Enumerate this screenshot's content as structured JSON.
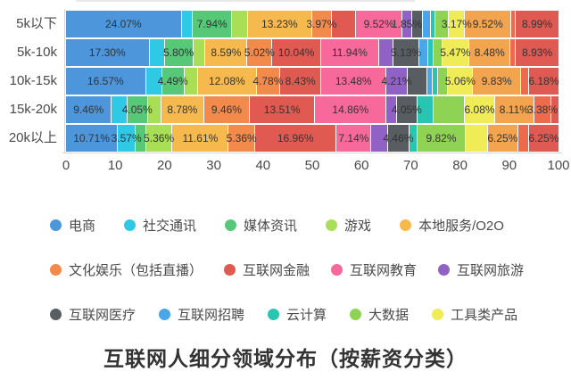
{
  "title": "互联网人细分领域分布（按薪资分类）",
  "palette": {
    "ecommerce": "#4D96DB",
    "social": "#2FC8E5",
    "media": "#57C878",
    "game": "#A9DF56",
    "local_service": "#F6B94D",
    "culture": "#F28A4C",
    "finance": "#E15A52",
    "education": "#F6699A",
    "travel": "#9062C6",
    "medical": "#575D61",
    "recruit": "#4BA5E9",
    "cloud": "#28C5B0",
    "bigdata": "#8ED353",
    "tools": "#F0EC58",
    "extra_orange": "#F3A44E",
    "extra_orangered": "#EE6A4D",
    "extra_red": "#DF5A52"
  },
  "legend": {
    "rows": [
      [
        {
          "label": "电商",
          "color": "ecommerce"
        },
        {
          "label": "社交通讯",
          "color": "social"
        },
        {
          "label": "媒体资讯",
          "color": "media"
        },
        {
          "label": "游戏",
          "color": "game"
        },
        {
          "label": "本地服务/O2O",
          "color": "local_service"
        }
      ],
      [
        {
          "label": "文化娱乐（包括直播）",
          "color": "culture"
        },
        {
          "label": "互联网金融",
          "color": "finance"
        },
        {
          "label": "互联网教育",
          "color": "education"
        },
        {
          "label": "互联网旅游",
          "color": "travel"
        }
      ],
      [
        {
          "label": "互联网医疗",
          "color": "medical"
        },
        {
          "label": "互联网招聘",
          "color": "recruit"
        },
        {
          "label": "云计算",
          "color": "cloud"
        },
        {
          "label": "大数据",
          "color": "bigdata"
        },
        {
          "label": "工具类产品",
          "color": "tools"
        }
      ]
    ]
  },
  "chart_data": {
    "type": "bar",
    "subtype": "horizontal-stacked-percentage",
    "title": "互联网人细分领域分布（按薪资分类）",
    "xlabel": "",
    "ylabel": "",
    "xlim": [
      0,
      100
    ],
    "x_ticks": [
      "0",
      "10",
      "20",
      "30",
      "40",
      "50",
      "60",
      "70",
      "80",
      "90",
      "100"
    ],
    "grid": false,
    "legend_position": "bottom",
    "categories": [
      "5k以下",
      "5k-10k",
      "10k-15k",
      "15k-20k",
      "20k以上"
    ],
    "bars": [
      {
        "category": "5k以下",
        "segments": [
          {
            "c": "ecommerce",
            "v": 24.07,
            "label": "24.07%"
          },
          {
            "c": "social",
            "v": 2.2,
            "label": ""
          },
          {
            "c": "media",
            "v": 7.94,
            "label": "7.94%"
          },
          {
            "c": "game",
            "v": 3.2,
            "label": ""
          },
          {
            "c": "local_service",
            "v": 13.23,
            "label": "13.23%"
          },
          {
            "c": "culture",
            "v": 3.97,
            "label": "3.97%"
          },
          {
            "c": "finance",
            "v": 4.9,
            "label": ""
          },
          {
            "c": "education",
            "v": 9.52,
            "label": "9.52%"
          },
          {
            "c": "travel",
            "v": 1.85,
            "label": "1.85%"
          },
          {
            "c": "medical",
            "v": 2.0,
            "label": ""
          },
          {
            "c": "recruit",
            "v": 1.5,
            "label": ""
          },
          {
            "c": "cloud",
            "v": 0.8,
            "label": ""
          },
          {
            "c": "bigdata",
            "v": 2.7,
            "label": ""
          },
          {
            "c": "tools",
            "v": 3.17,
            "label": "3.17%"
          },
          {
            "c": "extra_orange",
            "v": 9.52,
            "label": "9.52%"
          },
          {
            "c": "extra_orangered",
            "v": 0.7,
            "label": ""
          },
          {
            "c": "extra_red",
            "v": 8.99,
            "label": "8.99%"
          }
        ]
      },
      {
        "category": "5k-10k",
        "segments": [
          {
            "c": "ecommerce",
            "v": 17.3,
            "label": "17.30%"
          },
          {
            "c": "social",
            "v": 3.0,
            "label": ""
          },
          {
            "c": "media",
            "v": 5.8,
            "label": "5.80%"
          },
          {
            "c": "game",
            "v": 2.4,
            "label": ""
          },
          {
            "c": "local_service",
            "v": 8.59,
            "label": "8.59%"
          },
          {
            "c": "culture",
            "v": 5.02,
            "label": "5.02%"
          },
          {
            "c": "finance",
            "v": 10.04,
            "label": "10.04%"
          },
          {
            "c": "education",
            "v": 11.94,
            "label": "11.94%"
          },
          {
            "c": "travel",
            "v": 2.9,
            "label": ""
          },
          {
            "c": "medical",
            "v": 5.13,
            "label": "5.13%"
          },
          {
            "c": "recruit",
            "v": 1.8,
            "label": ""
          },
          {
            "c": "cloud",
            "v": 0.9,
            "label": ""
          },
          {
            "c": "bigdata",
            "v": 1.6,
            "label": ""
          },
          {
            "c": "tools",
            "v": 5.47,
            "label": "5.47%"
          },
          {
            "c": "extra_orange",
            "v": 8.48,
            "label": "8.48%"
          },
          {
            "c": "extra_orangered",
            "v": 0.9,
            "label": ""
          },
          {
            "c": "extra_red",
            "v": 8.93,
            "label": "8.93%"
          }
        ]
      },
      {
        "category": "10k-15k",
        "segments": [
          {
            "c": "ecommerce",
            "v": 16.57,
            "label": "16.57%"
          },
          {
            "c": "social",
            "v": 3.2,
            "label": ""
          },
          {
            "c": "media",
            "v": 4.49,
            "label": "4.49%"
          },
          {
            "c": "game",
            "v": 2.7,
            "label": ""
          },
          {
            "c": "local_service",
            "v": 12.08,
            "label": "12.08%"
          },
          {
            "c": "culture",
            "v": 4.78,
            "label": "4.78%"
          },
          {
            "c": "finance",
            "v": 8.43,
            "label": "8.43%"
          },
          {
            "c": "education",
            "v": 13.48,
            "label": "13.48%"
          },
          {
            "c": "travel",
            "v": 4.21,
            "label": "4.21%"
          },
          {
            "c": "medical",
            "v": 4.0,
            "label": ""
          },
          {
            "c": "recruit",
            "v": 0.9,
            "label": ""
          },
          {
            "c": "cloud",
            "v": 0.9,
            "label": ""
          },
          {
            "c": "bigdata",
            "v": 2.0,
            "label": ""
          },
          {
            "c": "tools",
            "v": 5.06,
            "label": "5.06%"
          },
          {
            "c": "extra_orange",
            "v": 9.83,
            "label": "9.83%"
          },
          {
            "c": "extra_orangered",
            "v": 1.5,
            "label": ""
          },
          {
            "c": "extra_red",
            "v": 6.18,
            "label": "6.18%"
          }
        ]
      },
      {
        "category": "15k-20k",
        "segments": [
          {
            "c": "ecommerce",
            "v": 9.46,
            "label": "9.46%"
          },
          {
            "c": "social",
            "v": 3.1,
            "label": ""
          },
          {
            "c": "media",
            "v": 4.05,
            "label": "4.05%"
          },
          {
            "c": "game",
            "v": 2.7,
            "label": ""
          },
          {
            "c": "local_service",
            "v": 8.78,
            "label": "8.78%"
          },
          {
            "c": "culture",
            "v": 9.46,
            "label": "9.46%"
          },
          {
            "c": "finance",
            "v": 13.51,
            "label": "13.51%"
          },
          {
            "c": "education",
            "v": 14.86,
            "label": "14.86%"
          },
          {
            "c": "travel",
            "v": 2.0,
            "label": ""
          },
          {
            "c": "medical",
            "v": 4.05,
            "label": "4.05%"
          },
          {
            "c": "cloud",
            "v": 3.3,
            "label": ""
          },
          {
            "c": "bigdata",
            "v": 6.4,
            "label": ""
          },
          {
            "c": "tools",
            "v": 6.08,
            "label": "6.08%"
          },
          {
            "c": "extra_orange",
            "v": 8.11,
            "label": "8.11%"
          },
          {
            "c": "extra_orangered",
            "v": 3.38,
            "label": "3.38%"
          },
          {
            "c": "extra_red",
            "v": 1.5,
            "label": ""
          }
        ]
      },
      {
        "category": "20k以上",
        "segments": [
          {
            "c": "ecommerce",
            "v": 10.71,
            "label": "10.71%"
          },
          {
            "c": "social",
            "v": 3.57,
            "label": "3.57%"
          },
          {
            "c": "media",
            "v": 2.0,
            "label": ""
          },
          {
            "c": "game",
            "v": 5.36,
            "label": "5.36%"
          },
          {
            "c": "local_service",
            "v": 11.61,
            "label": "11.61%"
          },
          {
            "c": "culture",
            "v": 5.36,
            "label": "5.36%"
          },
          {
            "c": "finance",
            "v": 16.96,
            "label": "16.96%"
          },
          {
            "c": "education",
            "v": 7.14,
            "label": "7.14%"
          },
          {
            "c": "travel",
            "v": 3.2,
            "label": ""
          },
          {
            "c": "medical",
            "v": 4.46,
            "label": "4.46%"
          },
          {
            "c": "cloud",
            "v": 1.5,
            "label": ""
          },
          {
            "c": "bigdata",
            "v": 9.82,
            "label": "9.82%"
          },
          {
            "c": "tools",
            "v": 4.5,
            "label": ""
          },
          {
            "c": "extra_orange",
            "v": 6.25,
            "label": "6.25%"
          },
          {
            "c": "extra_orangered",
            "v": 2.0,
            "label": ""
          },
          {
            "c": "extra_red",
            "v": 6.25,
            "label": "6.25%"
          }
        ]
      }
    ]
  }
}
